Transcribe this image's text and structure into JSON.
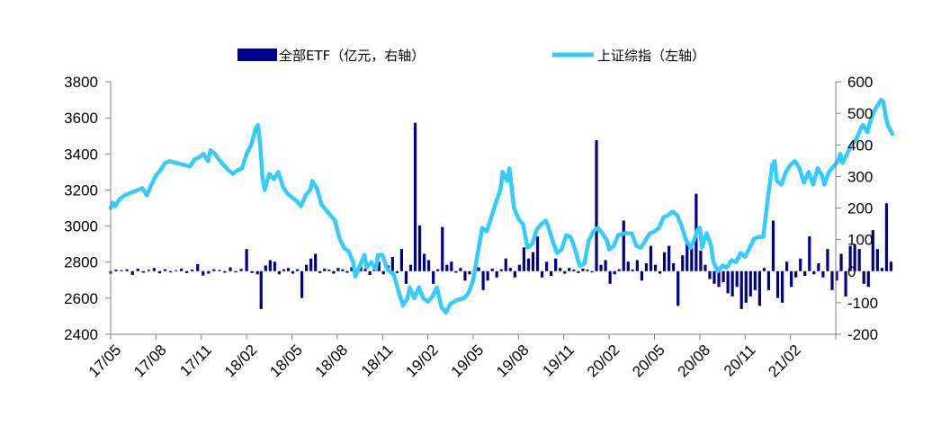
{
  "chart_data": {
    "type": "bar+line",
    "title": "",
    "colors": {
      "bar": "#00008B",
      "line": "#33CCFF",
      "axis": "#808080"
    },
    "legend": [
      {
        "name": "全部ETF（亿元，右轴）",
        "kind": "bar"
      },
      {
        "name": "上证综指（左轴）",
        "kind": "line"
      }
    ],
    "legend_position": "top-center",
    "x_tick_labels": [
      "17/05",
      "17/08",
      "17/11",
      "18/02",
      "18/05",
      "18/08",
      "18/11",
      "19/02",
      "19/05",
      "19/08",
      "19/11",
      "20/02",
      "20/05",
      "20/08",
      "20/11",
      "21/02"
    ],
    "left_axis": {
      "min": 2400,
      "max": 3800,
      "ticks": [
        2400,
        2600,
        2800,
        3000,
        3200,
        3400,
        3600,
        3800
      ]
    },
    "right_axis": {
      "min": -200,
      "max": 600,
      "ticks": [
        -200,
        -100,
        0,
        100,
        200,
        300,
        400,
        500,
        600
      ]
    },
    "line_series": {
      "name": "上证综指（左轴）",
      "axis": "left",
      "points": [
        [
          0.0,
          3100
        ],
        [
          0.05,
          3130
        ],
        [
          0.1,
          3110
        ],
        [
          0.2,
          3150
        ],
        [
          0.3,
          3170
        ],
        [
          0.4,
          3180
        ],
        [
          0.55,
          3195
        ],
        [
          0.7,
          3210
        ],
        [
          0.8,
          3170
        ],
        [
          0.9,
          3230
        ],
        [
          1.0,
          3280
        ],
        [
          1.1,
          3310
        ],
        [
          1.2,
          3350
        ],
        [
          1.3,
          3360
        ],
        [
          1.45,
          3350
        ],
        [
          1.6,
          3340
        ],
        [
          1.75,
          3330
        ],
        [
          1.85,
          3370
        ],
        [
          1.95,
          3380
        ],
        [
          2.05,
          3400
        ],
        [
          2.15,
          3360
        ],
        [
          2.2,
          3420
        ],
        [
          2.3,
          3400
        ],
        [
          2.45,
          3350
        ],
        [
          2.6,
          3310
        ],
        [
          2.7,
          3290
        ],
        [
          2.8,
          3310
        ],
        [
          2.9,
          3320
        ],
        [
          2.95,
          3360
        ],
        [
          3.0,
          3400
        ],
        [
          3.1,
          3450
        ],
        [
          3.2,
          3540
        ],
        [
          3.25,
          3560
        ],
        [
          3.3,
          3450
        ],
        [
          3.35,
          3270
        ],
        [
          3.4,
          3200
        ],
        [
          3.5,
          3290
        ],
        [
          3.6,
          3260
        ],
        [
          3.7,
          3300
        ],
        [
          3.8,
          3220
        ],
        [
          3.9,
          3180
        ],
        [
          4.0,
          3160
        ],
        [
          4.1,
          3140
        ],
        [
          4.2,
          3110
        ],
        [
          4.3,
          3170
        ],
        [
          4.4,
          3200
        ],
        [
          4.45,
          3250
        ],
        [
          4.55,
          3210
        ],
        [
          4.65,
          3120
        ],
        [
          4.75,
          3090
        ],
        [
          4.85,
          3060
        ],
        [
          4.95,
          3030
        ],
        [
          5.05,
          2930
        ],
        [
          5.15,
          2880
        ],
        [
          5.25,
          2860
        ],
        [
          5.35,
          2800
        ],
        [
          5.4,
          2720
        ],
        [
          5.5,
          2780
        ],
        [
          5.6,
          2840
        ],
        [
          5.65,
          2770
        ],
        [
          5.75,
          2800
        ],
        [
          5.85,
          2760
        ],
        [
          5.9,
          2840
        ],
        [
          6.0,
          2840
        ],
        [
          6.1,
          2760
        ],
        [
          6.25,
          2730
        ],
        [
          6.35,
          2640
        ],
        [
          6.45,
          2560
        ],
        [
          6.55,
          2600
        ],
        [
          6.6,
          2660
        ],
        [
          6.7,
          2600
        ],
        [
          6.8,
          2660
        ],
        [
          6.9,
          2600
        ],
        [
          7.0,
          2580
        ],
        [
          7.1,
          2610
        ],
        [
          7.2,
          2660
        ],
        [
          7.3,
          2550
        ],
        [
          7.4,
          2520
        ],
        [
          7.5,
          2570
        ],
        [
          7.65,
          2590
        ],
        [
          7.8,
          2600
        ],
        [
          7.9,
          2630
        ],
        [
          8.0,
          2700
        ],
        [
          8.1,
          2850
        ],
        [
          8.2,
          2990
        ],
        [
          8.3,
          2970
        ],
        [
          8.4,
          3050
        ],
        [
          8.5,
          3130
        ],
        [
          8.6,
          3200
        ],
        [
          8.65,
          3300
        ],
        [
          8.75,
          3250
        ],
        [
          8.8,
          3320
        ],
        [
          8.9,
          3100
        ],
        [
          9.0,
          3040
        ],
        [
          9.1,
          3010
        ],
        [
          9.2,
          2880
        ],
        [
          9.3,
          2900
        ],
        [
          9.4,
          2980
        ],
        [
          9.5,
          3010
        ],
        [
          9.6,
          3030
        ],
        [
          9.65,
          3000
        ],
        [
          9.75,
          2920
        ],
        [
          9.85,
          2850
        ],
        [
          9.95,
          2870
        ],
        [
          10.05,
          2950
        ],
        [
          10.15,
          2940
        ],
        [
          10.25,
          2870
        ],
        [
          10.35,
          2780
        ],
        [
          10.45,
          2790
        ],
        [
          10.55,
          2920
        ],
        [
          10.65,
          2970
        ],
        [
          10.75,
          2990
        ],
        [
          10.85,
          2960
        ],
        [
          10.95,
          2920
        ],
        [
          11.0,
          2870
        ],
        [
          11.1,
          2890
        ],
        [
          11.2,
          2950
        ],
        [
          11.35,
          2960
        ],
        [
          11.5,
          2960
        ],
        [
          11.6,
          2890
        ],
        [
          11.7,
          2880
        ],
        [
          11.8,
          2920
        ],
        [
          11.9,
          2960
        ],
        [
          12.0,
          2970
        ],
        [
          12.1,
          2990
        ],
        [
          12.2,
          3050
        ],
        [
          12.3,
          3060
        ],
        [
          12.4,
          3080
        ],
        [
          12.5,
          3060
        ],
        [
          12.6,
          3000
        ],
        [
          12.7,
          2920
        ],
        [
          12.8,
          2880
        ],
        [
          12.9,
          2940
        ],
        [
          12.95,
          2980
        ],
        [
          13.0,
          2990
        ],
        [
          13.05,
          2880
        ],
        [
          13.15,
          2960
        ],
        [
          13.25,
          2890
        ],
        [
          13.3,
          2800
        ],
        [
          13.4,
          2750
        ],
        [
          13.5,
          2780
        ],
        [
          13.6,
          2770
        ],
        [
          13.7,
          2810
        ],
        [
          13.8,
          2800
        ],
        [
          13.9,
          2850
        ],
        [
          14.0,
          2830
        ],
        [
          14.1,
          2880
        ],
        [
          14.2,
          2930
        ],
        [
          14.3,
          2940
        ],
        [
          14.4,
          2940
        ],
        [
          14.5,
          3150
        ],
        [
          14.6,
          3340
        ],
        [
          14.65,
          3360
        ],
        [
          14.7,
          3250
        ],
        [
          14.8,
          3230
        ],
        [
          14.9,
          3300
        ],
        [
          15.0,
          3340
        ],
        [
          15.1,
          3360
        ],
        [
          15.2,
          3320
        ],
        [
          15.25,
          3280
        ],
        [
          15.3,
          3240
        ],
        [
          15.4,
          3300
        ],
        [
          15.5,
          3230
        ],
        [
          15.6,
          3320
        ],
        [
          15.7,
          3280
        ],
        [
          15.75,
          3230
        ],
        [
          15.85,
          3300
        ],
        [
          15.95,
          3330
        ],
        [
          16.05,
          3360
        ],
        [
          16.1,
          3400
        ],
        [
          16.15,
          3350
        ],
        [
          16.25,
          3400
        ],
        [
          16.35,
          3450
        ],
        [
          16.45,
          3480
        ],
        [
          16.55,
          3540
        ],
        [
          16.6,
          3560
        ],
        [
          16.7,
          3520
        ],
        [
          16.75,
          3570
        ],
        [
          16.85,
          3640
        ],
        [
          16.95,
          3680
        ],
        [
          17.0,
          3700
        ],
        [
          17.05,
          3690
        ],
        [
          17.1,
          3610
        ],
        [
          17.15,
          3560
        ],
        [
          17.25,
          3510
        ]
      ]
    },
    "bar_series": {
      "name": "全部ETF（亿元，右轴）",
      "axis": "right",
      "values": [
        [
          0.0,
          -8
        ],
        [
          0.12,
          5
        ],
        [
          0.24,
          3
        ],
        [
          0.36,
          6
        ],
        [
          0.48,
          -12
        ],
        [
          0.6,
          8
        ],
        [
          0.72,
          -5
        ],
        [
          0.84,
          4
        ],
        [
          0.96,
          10
        ],
        [
          1.08,
          -7
        ],
        [
          1.2,
          6
        ],
        [
          1.32,
          -4
        ],
        [
          1.44,
          3
        ],
        [
          1.56,
          8
        ],
        [
          1.68,
          -6
        ],
        [
          1.8,
          5
        ],
        [
          1.92,
          22
        ],
        [
          2.04,
          -14
        ],
        [
          2.16,
          -8
        ],
        [
          2.28,
          6
        ],
        [
          2.4,
          4
        ],
        [
          2.52,
          -5
        ],
        [
          2.64,
          12
        ],
        [
          2.76,
          -4
        ],
        [
          2.88,
          7
        ],
        [
          3.0,
          70
        ],
        [
          3.12,
          -6
        ],
        [
          3.24,
          -10
        ],
        [
          3.32,
          -120
        ],
        [
          3.42,
          18
        ],
        [
          3.52,
          35
        ],
        [
          3.62,
          30
        ],
        [
          3.72,
          -10
        ],
        [
          3.82,
          6
        ],
        [
          3.92,
          10
        ],
        [
          4.02,
          -8
        ],
        [
          4.12,
          6
        ],
        [
          4.22,
          -85
        ],
        [
          4.32,
          20
        ],
        [
          4.42,
          40
        ],
        [
          4.52,
          55
        ],
        [
          4.62,
          -6
        ],
        [
          4.72,
          8
        ],
        [
          4.82,
          5
        ],
        [
          4.92,
          -8
        ],
        [
          5.02,
          10
        ],
        [
          5.12,
          6
        ],
        [
          5.22,
          -5
        ],
        [
          5.32,
          12
        ],
        [
          5.42,
          -6
        ],
        [
          5.52,
          14
        ],
        [
          5.62,
          8
        ],
        [
          5.72,
          -12
        ],
        [
          5.82,
          9
        ],
        [
          5.92,
          30
        ],
        [
          6.02,
          -10
        ],
        [
          6.12,
          18
        ],
        [
          6.22,
          45
        ],
        [
          6.32,
          -6
        ],
        [
          6.42,
          70
        ],
        [
          6.52,
          -40
        ],
        [
          6.62,
          20
        ],
        [
          6.72,
          470
        ],
        [
          6.82,
          145
        ],
        [
          6.92,
          55
        ],
        [
          7.02,
          35
        ],
        [
          7.12,
          -40
        ],
        [
          7.22,
          6
        ],
        [
          7.32,
          140
        ],
        [
          7.42,
          20
        ],
        [
          7.52,
          30
        ],
        [
          7.62,
          -5
        ],
        [
          7.72,
          10
        ],
        [
          7.82,
          -30
        ],
        [
          7.92,
          -10
        ],
        [
          8.02,
          -6
        ],
        [
          8.12,
          12
        ],
        [
          8.22,
          -60
        ],
        [
          8.32,
          -30
        ],
        [
          8.42,
          8
        ],
        [
          8.52,
          -20
        ],
        [
          8.62,
          6
        ],
        [
          8.72,
          40
        ],
        [
          8.82,
          10
        ],
        [
          8.92,
          -20
        ],
        [
          9.02,
          20
        ],
        [
          9.12,
          75
        ],
        [
          9.22,
          40
        ],
        [
          9.32,
          60
        ],
        [
          9.42,
          110
        ],
        [
          9.52,
          -20
        ],
        [
          9.62,
          30
        ],
        [
          9.72,
          -15
        ],
        [
          9.82,
          40
        ],
        [
          9.92,
          10
        ],
        [
          10.02,
          -8
        ],
        [
          10.12,
          10
        ],
        [
          10.22,
          5
        ],
        [
          10.32,
          -6
        ],
        [
          10.42,
          8
        ],
        [
          10.52,
          5
        ],
        [
          10.62,
          -4
        ],
        [
          10.72,
          415
        ],
        [
          10.82,
          20
        ],
        [
          10.92,
          35
        ],
        [
          11.02,
          -40
        ],
        [
          11.12,
          -10
        ],
        [
          11.22,
          6
        ],
        [
          11.32,
          160
        ],
        [
          11.42,
          30
        ],
        [
          11.52,
          5
        ],
        [
          11.62,
          35
        ],
        [
          11.72,
          -30
        ],
        [
          11.82,
          25
        ],
        [
          11.92,
          80
        ],
        [
          12.02,
          20
        ],
        [
          12.12,
          -8
        ],
        [
          12.22,
          60
        ],
        [
          12.32,
          80
        ],
        [
          12.42,
          25
        ],
        [
          12.52,
          -110
        ],
        [
          12.62,
          50
        ],
        [
          12.72,
          90
        ],
        [
          12.82,
          85
        ],
        [
          12.92,
          245
        ],
        [
          13.02,
          65
        ],
        [
          13.12,
          20
        ],
        [
          13.22,
          -25
        ],
        [
          13.32,
          -40
        ],
        [
          13.42,
          -50
        ],
        [
          13.52,
          -35
        ],
        [
          13.62,
          -70
        ],
        [
          13.72,
          -80
        ],
        [
          13.82,
          -50
        ],
        [
          13.92,
          -120
        ],
        [
          14.02,
          -100
        ],
        [
          14.12,
          -80
        ],
        [
          14.22,
          -60
        ],
        [
          14.32,
          -110
        ],
        [
          14.42,
          10
        ],
        [
          14.52,
          -60
        ],
        [
          14.62,
          160
        ],
        [
          14.72,
          -85
        ],
        [
          14.82,
          -100
        ],
        [
          14.92,
          30
        ],
        [
          15.02,
          -50
        ],
        [
          15.12,
          -20
        ],
        [
          15.22,
          40
        ],
        [
          15.32,
          -15
        ],
        [
          15.42,
          110
        ],
        [
          15.52,
          -10
        ],
        [
          15.62,
          25
        ],
        [
          15.72,
          -20
        ],
        [
          15.82,
          70
        ],
        [
          15.92,
          -60
        ],
        [
          16.02,
          -30
        ],
        [
          16.12,
          55
        ],
        [
          16.22,
          -80
        ],
        [
          16.32,
          80
        ],
        [
          16.42,
          85
        ],
        [
          16.52,
          70
        ],
        [
          16.62,
          -40
        ],
        [
          16.72,
          -50
        ],
        [
          16.82,
          130
        ],
        [
          16.92,
          70
        ],
        [
          17.02,
          10
        ],
        [
          17.12,
          215
        ],
        [
          17.22,
          30
        ]
      ]
    }
  }
}
